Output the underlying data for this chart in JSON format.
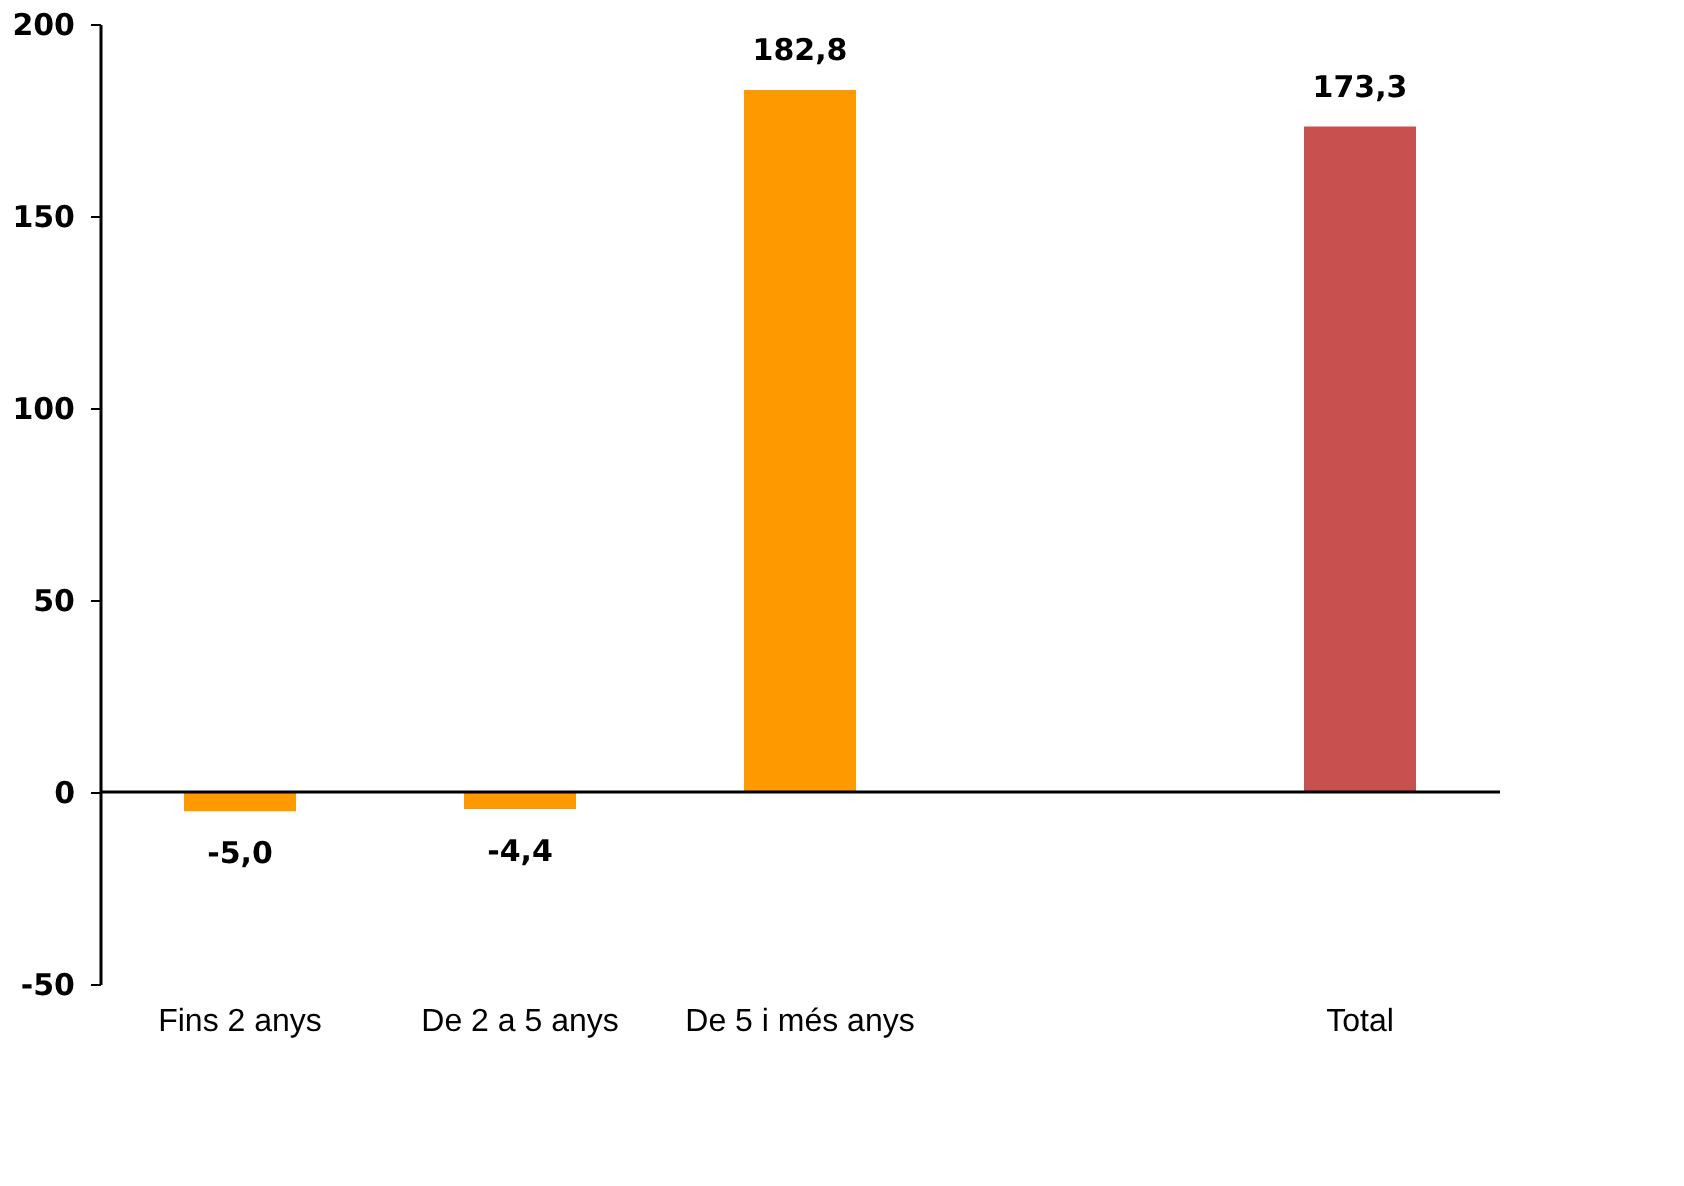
{
  "chart_data": {
    "type": "bar",
    "categories": [
      "Fins 2 anys",
      "De 2 a 5 anys",
      "De 5 i més anys",
      null,
      "Total"
    ],
    "values": [
      -5.0,
      -4.4,
      182.8,
      null,
      173.3
    ],
    "colors": [
      "#ff9900",
      "#ff9900",
      "#ff9900",
      "#ff9900",
      "#c8504e"
    ],
    "value_labels": [
      "-5,0",
      "-4,4",
      "182,8",
      null,
      "173,3"
    ],
    "ylim": [
      -50,
      200
    ],
    "yticks": [
      -50,
      0,
      50,
      100,
      150,
      200
    ]
  }
}
